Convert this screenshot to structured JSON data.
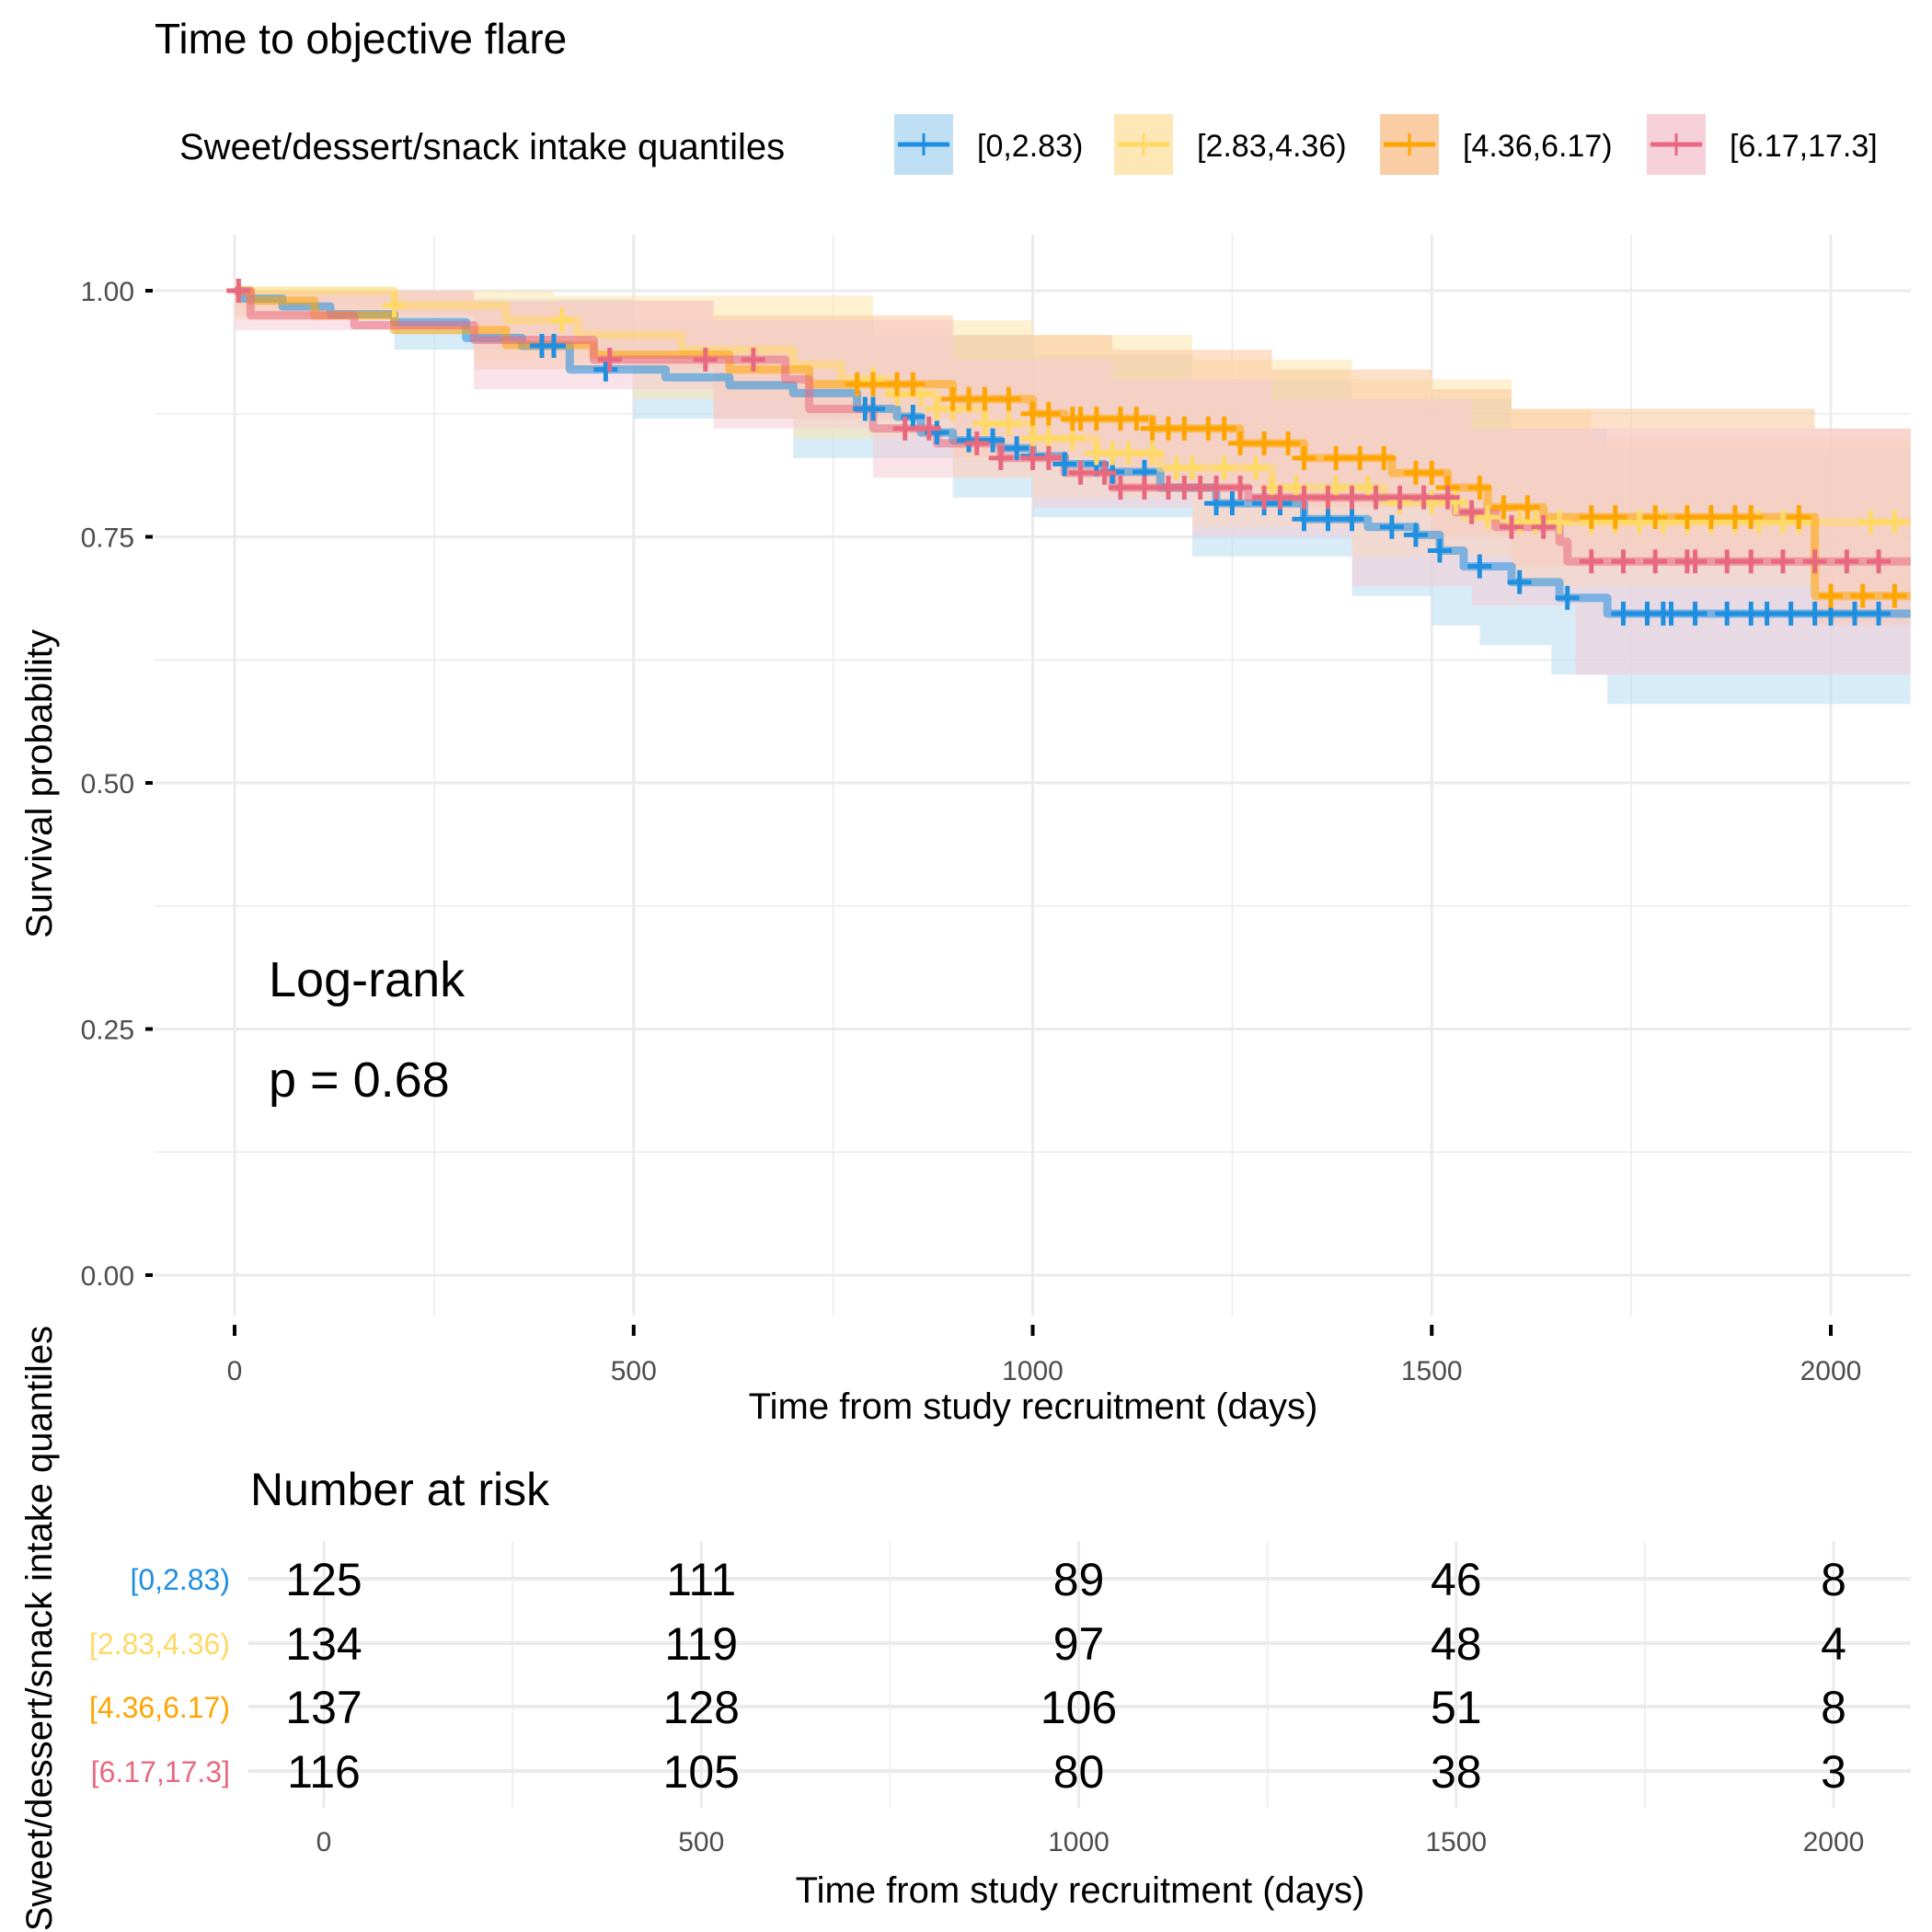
{
  "chart_data": {
    "type": "line",
    "subtype": "kaplan-meier",
    "title": "Time to objective flare",
    "legend": {
      "title": "Sweet/dessert/snack intake quantiles",
      "position": "top"
    },
    "xlabel": "Time from study recruitment (days)",
    "ylabel": "Survival probability",
    "xlim": [
      -100,
      2100
    ],
    "ylim": [
      0,
      1
    ],
    "x_ticks": [
      0,
      500,
      1000,
      1500,
      2000
    ],
    "x_tick_labels": [
      "0",
      "500",
      "1000",
      "1500",
      "2000"
    ],
    "y_ticks": [
      0,
      0.25,
      0.5,
      0.75,
      1.0
    ],
    "y_tick_labels": [
      "0.00",
      "0.25",
      "0.50",
      "0.75",
      "1.00"
    ],
    "grid": true,
    "annotation": {
      "test_label": "Log-rank",
      "p_value_label": "p = 0.68",
      "p_value": 0.68
    },
    "series": [
      {
        "name": "[0,2.83)",
        "color": "#1f8fe0",
        "ci_color": "#b8dcf3",
        "steps": [
          [
            0,
            1.0
          ],
          [
            10,
            0.992
          ],
          [
            60,
            0.984
          ],
          [
            120,
            0.976
          ],
          [
            200,
            0.968
          ],
          [
            290,
            0.952
          ],
          [
            360,
            0.944
          ],
          [
            420,
            0.92
          ],
          [
            540,
            0.912
          ],
          [
            620,
            0.904
          ],
          [
            700,
            0.896
          ],
          [
            780,
            0.88
          ],
          [
            830,
            0.872
          ],
          [
            860,
            0.856
          ],
          [
            900,
            0.848
          ],
          [
            960,
            0.84
          ],
          [
            1000,
            0.832
          ],
          [
            1040,
            0.824
          ],
          [
            1090,
            0.816
          ],
          [
            1160,
            0.8
          ],
          [
            1230,
            0.784
          ],
          [
            1340,
            0.768
          ],
          [
            1420,
            0.76
          ],
          [
            1480,
            0.752
          ],
          [
            1510,
            0.736
          ],
          [
            1540,
            0.72
          ],
          [
            1600,
            0.704
          ],
          [
            1660,
            0.688
          ],
          [
            1720,
            0.672
          ],
          [
            2100,
            0.672
          ]
        ],
        "ci_upper": [
          [
            0,
            1.0
          ],
          [
            200,
            0.992
          ],
          [
            500,
            0.97
          ],
          [
            800,
            0.955
          ],
          [
            1000,
            0.935
          ],
          [
            1200,
            0.91
          ],
          [
            1400,
            0.89
          ],
          [
            1600,
            0.86
          ],
          [
            1720,
            0.84
          ],
          [
            2100,
            0.84
          ]
        ],
        "ci_lower": [
          [
            0,
            0.985
          ],
          [
            200,
            0.94
          ],
          [
            500,
            0.87
          ],
          [
            700,
            0.83
          ],
          [
            900,
            0.79
          ],
          [
            1000,
            0.77
          ],
          [
            1200,
            0.73
          ],
          [
            1400,
            0.69
          ],
          [
            1500,
            0.66
          ],
          [
            1560,
            0.64
          ],
          [
            1650,
            0.61
          ],
          [
            1720,
            0.58
          ],
          [
            2100,
            0.58
          ]
        ],
        "censor_x": [
          385,
          400,
          465,
          790,
          800,
          850,
          880,
          920,
          950,
          980,
          1000,
          1040,
          1080,
          1100,
          1140,
          1170,
          1230,
          1250,
          1290,
          1310,
          1340,
          1370,
          1400,
          1450,
          1480,
          1510,
          1560,
          1610,
          1670,
          1740,
          1770,
          1790,
          1800,
          1830,
          1870,
          1900,
          1920,
          1950,
          1980,
          2000,
          2030,
          2060
        ],
        "at_risk": [
          125,
          111,
          89,
          46,
          8
        ]
      },
      {
        "name": "[2.83,4.36)",
        "color": "#ffd966",
        "ci_color": "#fde6ad",
        "steps": [
          [
            0,
            1.0
          ],
          [
            200,
            0.985
          ],
          [
            340,
            0.97
          ],
          [
            430,
            0.955
          ],
          [
            560,
            0.94
          ],
          [
            700,
            0.925
          ],
          [
            760,
            0.91
          ],
          [
            820,
            0.895
          ],
          [
            880,
            0.88
          ],
          [
            940,
            0.865
          ],
          [
            1000,
            0.85
          ],
          [
            1080,
            0.835
          ],
          [
            1160,
            0.82
          ],
          [
            1300,
            0.8
          ],
          [
            1440,
            0.785
          ],
          [
            1540,
            0.77
          ],
          [
            1580,
            0.765
          ],
          [
            2100,
            0.765
          ]
        ],
        "ci_upper": [
          [
            0,
            1.0
          ],
          [
            400,
            0.995
          ],
          [
            800,
            0.97
          ],
          [
            1000,
            0.955
          ],
          [
            1200,
            0.93
          ],
          [
            1400,
            0.91
          ],
          [
            1600,
            0.88
          ],
          [
            1700,
            0.85
          ],
          [
            1980,
            0.85
          ],
          [
            2100,
            0.86
          ]
        ],
        "ci_lower": [
          [
            0,
            0.97
          ],
          [
            300,
            0.93
          ],
          [
            500,
            0.89
          ],
          [
            700,
            0.85
          ],
          [
            900,
            0.81
          ],
          [
            1000,
            0.79
          ],
          [
            1200,
            0.76
          ],
          [
            1400,
            0.73
          ],
          [
            1600,
            0.7
          ],
          [
            1980,
            0.69
          ],
          [
            2100,
            0.55
          ]
        ],
        "censor_x": [
          200,
          410,
          800,
          830,
          860,
          880,
          900,
          940,
          970,
          1000,
          1020,
          1050,
          1080,
          1100,
          1120,
          1150,
          1180,
          1200,
          1240,
          1280,
          1300,
          1330,
          1380,
          1420,
          1460,
          1500,
          1530,
          1570,
          1610,
          1630,
          1660,
          1700,
          1730,
          1760,
          1790,
          1820,
          1850,
          1880,
          1910,
          1940,
          1960,
          2050,
          2080
        ],
        "at_risk": [
          134,
          119,
          97,
          48,
          4
        ]
      },
      {
        "name": "[4.36,6.17)",
        "color": "#ffa500",
        "ci_color": "#f9c89a",
        "steps": [
          [
            0,
            1.0
          ],
          [
            20,
            0.99
          ],
          [
            100,
            0.975
          ],
          [
            200,
            0.96
          ],
          [
            340,
            0.945
          ],
          [
            450,
            0.935
          ],
          [
            620,
            0.92
          ],
          [
            720,
            0.905
          ],
          [
            900,
            0.89
          ],
          [
            1000,
            0.875
          ],
          [
            1040,
            0.87
          ],
          [
            1150,
            0.86
          ],
          [
            1260,
            0.845
          ],
          [
            1340,
            0.83
          ],
          [
            1450,
            0.815
          ],
          [
            1520,
            0.8
          ],
          [
            1570,
            0.78
          ],
          [
            1640,
            0.77
          ],
          [
            1980,
            0.69
          ],
          [
            2100,
            0.69
          ]
        ],
        "ci_upper": [
          [
            0,
            1.0
          ],
          [
            300,
            0.99
          ],
          [
            600,
            0.975
          ],
          [
            900,
            0.955
          ],
          [
            1100,
            0.94
          ],
          [
            1300,
            0.92
          ],
          [
            1500,
            0.9
          ],
          [
            1600,
            0.88
          ],
          [
            1980,
            0.86
          ],
          [
            2100,
            0.86
          ]
        ],
        "ci_lower": [
          [
            0,
            0.975
          ],
          [
            300,
            0.92
          ],
          [
            600,
            0.87
          ],
          [
            900,
            0.83
          ],
          [
            1100,
            0.8
          ],
          [
            1300,
            0.78
          ],
          [
            1500,
            0.75
          ],
          [
            1600,
            0.72
          ],
          [
            1980,
            0.66
          ],
          [
            2100,
            0.55
          ]
        ],
        "censor_x": [
          5,
          780,
          800,
          830,
          850,
          900,
          920,
          940,
          970,
          1000,
          1020,
          1050,
          1060,
          1080,
          1110,
          1130,
          1150,
          1170,
          1190,
          1220,
          1240,
          1260,
          1290,
          1320,
          1340,
          1380,
          1410,
          1440,
          1480,
          1500,
          1520,
          1560,
          1590,
          1620,
          1700,
          1730,
          1780,
          1820,
          1850,
          1880,
          1900,
          1960,
          2000,
          2040,
          2080
        ],
        "at_risk": [
          137,
          128,
          106,
          51,
          8
        ]
      },
      {
        "name": "[6.17,17.3]",
        "color": "#e8697f",
        "ci_color": "#f5ccd6",
        "steps": [
          [
            0,
            1.0
          ],
          [
            20,
            0.975
          ],
          [
            150,
            0.965
          ],
          [
            300,
            0.95
          ],
          [
            450,
            0.93
          ],
          [
            690,
            0.91
          ],
          [
            720,
            0.88
          ],
          [
            800,
            0.86
          ],
          [
            880,
            0.845
          ],
          [
            960,
            0.83
          ],
          [
            1040,
            0.815
          ],
          [
            1100,
            0.8
          ],
          [
            1270,
            0.79
          ],
          [
            1530,
            0.775
          ],
          [
            1580,
            0.76
          ],
          [
            1660,
            0.745
          ],
          [
            1670,
            0.725
          ],
          [
            2100,
            0.725
          ]
        ],
        "ci_upper": [
          [
            0,
            1.0
          ],
          [
            300,
            0.99
          ],
          [
            600,
            0.97
          ],
          [
            900,
            0.93
          ],
          [
            1100,
            0.91
          ],
          [
            1300,
            0.89
          ],
          [
            1550,
            0.86
          ],
          [
            2100,
            0.84
          ]
        ],
        "ci_lower": [
          [
            0,
            0.96
          ],
          [
            300,
            0.9
          ],
          [
            600,
            0.86
          ],
          [
            800,
            0.81
          ],
          [
            1000,
            0.78
          ],
          [
            1200,
            0.75
          ],
          [
            1400,
            0.7
          ],
          [
            1550,
            0.68
          ],
          [
            1680,
            0.61
          ],
          [
            2100,
            0.61
          ]
        ],
        "censor_x": [
          5,
          470,
          590,
          650,
          840,
          870,
          930,
          960,
          1000,
          1020,
          1060,
          1090,
          1110,
          1140,
          1170,
          1190,
          1210,
          1230,
          1260,
          1290,
          1310,
          1340,
          1370,
          1400,
          1430,
          1460,
          1490,
          1520,
          1550,
          1600,
          1640,
          1700,
          1740,
          1780,
          1820,
          1830,
          1870,
          1900,
          1940,
          1980,
          2020,
          2060
        ],
        "at_risk": [
          116,
          105,
          80,
          38,
          3
        ]
      }
    ],
    "risk_table": {
      "title": "Number at risk",
      "ylabel": "Sweet/dessert/snack intake quantiles",
      "xlabel": "Time from study recruitment (days)",
      "time_points": [
        0,
        500,
        1000,
        1500,
        2000
      ],
      "x_tick_labels": [
        "0",
        "500",
        "1000",
        "1500",
        "2000"
      ]
    }
  }
}
